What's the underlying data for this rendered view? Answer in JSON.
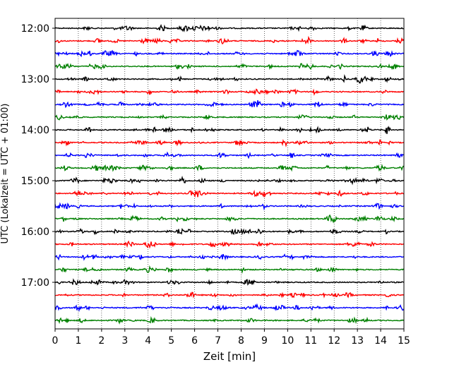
{
  "chart_data": {
    "type": "line",
    "title": "",
    "xlabel": "Zeit  [min]",
    "ylabel": "UTC (Lokalzeit = UTC + 01:00)",
    "xlim": [
      0,
      15
    ],
    "x_ticks": [
      "0",
      "1",
      "2",
      "3",
      "4",
      "5",
      "6",
      "7",
      "8",
      "9",
      "10",
      "11",
      "12",
      "13",
      "14",
      "15"
    ],
    "y_ticks": [
      "12:00",
      "13:00",
      "14:00",
      "15:00",
      "16:00",
      "17:00"
    ],
    "grid": "vertical dotted lines at each minute",
    "row_interval_minutes": 15,
    "row_colors": [
      "#000000",
      "#ff0000",
      "#0000ff",
      "#008000"
    ],
    "rows": [
      {
        "start": "12:00",
        "color": "#000000"
      },
      {
        "start": "12:15",
        "color": "#ff0000"
      },
      {
        "start": "12:30",
        "color": "#0000ff"
      },
      {
        "start": "12:45",
        "color": "#008000"
      },
      {
        "start": "13:00",
        "color": "#000000"
      },
      {
        "start": "13:15",
        "color": "#ff0000"
      },
      {
        "start": "13:30",
        "color": "#0000ff"
      },
      {
        "start": "13:45",
        "color": "#008000"
      },
      {
        "start": "14:00",
        "color": "#000000"
      },
      {
        "start": "14:15",
        "color": "#ff0000"
      },
      {
        "start": "14:30",
        "color": "#0000ff"
      },
      {
        "start": "14:45",
        "color": "#008000"
      },
      {
        "start": "15:00",
        "color": "#000000"
      },
      {
        "start": "15:15",
        "color": "#ff0000"
      },
      {
        "start": "15:30",
        "color": "#0000ff"
      },
      {
        "start": "15:45",
        "color": "#008000"
      },
      {
        "start": "16:00",
        "color": "#000000"
      },
      {
        "start": "16:15",
        "color": "#ff0000"
      },
      {
        "start": "16:30",
        "color": "#0000ff"
      },
      {
        "start": "16:45",
        "color": "#008000"
      },
      {
        "start": "17:00",
        "color": "#000000"
      },
      {
        "start": "17:15",
        "color": "#ff0000"
      },
      {
        "start": "17:30",
        "color": "#0000ff"
      },
      {
        "start": "17:45",
        "color": "#008000"
      }
    ]
  }
}
